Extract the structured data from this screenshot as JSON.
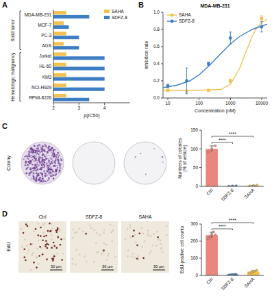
{
  "chart_data": [
    {
      "panel": "A",
      "type": "bar",
      "orientation": "horizontal",
      "categories": [
        "MDA-MB-231",
        "MCF-7",
        "PC-3",
        "AGS",
        "Jurkat",
        "HL-60",
        "KM3",
        "NCI-H929",
        "RPMI-8226"
      ],
      "series": [
        {
          "name": "SAHA",
          "color": "#f2c14e",
          "values": [
            2.5,
            2.4,
            2.5,
            2.4,
            2.5,
            2.5,
            2.5,
            2.5,
            2.5
          ]
        },
        {
          "name": "SDFZ-8",
          "color": "#3c7dc4",
          "values": [
            3.4,
            2.6,
            3.0,
            3.0,
            4.0,
            4.0,
            4.0,
            4.0,
            3.4
          ]
        }
      ],
      "groups": [
        {
          "label": "Solid tumor",
          "count": 4
        },
        {
          "label": "Hematologic malignancy",
          "count": 5
        }
      ],
      "x_label": "p(IC50)",
      "xlim": [
        2,
        5
      ],
      "xticks": [
        2,
        3,
        4
      ],
      "legend": "upper right"
    },
    {
      "panel": "B",
      "type": "line",
      "title": "MDA-MB-231",
      "log": "x",
      "x_label": "Concentration (nM)",
      "y_label": "Inhibition rate",
      "xlim": [
        7,
        15000
      ],
      "xticks": [
        10,
        100,
        1000,
        10000
      ],
      "ylim": [
        0,
        1
      ],
      "yticks": [
        {
          "value": 0,
          "label": "0.0"
        },
        {
          "value": 0.2,
          "label": "0.2"
        },
        {
          "value": 0.4,
          "label": "0.4"
        },
        {
          "value": 0.6,
          "label": "0.6"
        },
        {
          "value": 0.8,
          "label": "0.8"
        },
        {
          "value": 1,
          "label": "1.0"
        }
      ],
      "legend": "upper left",
      "series": [
        {
          "name": "SAHA",
          "color": "#f2c14e",
          "marker": "square",
          "x": [
            10,
            40,
            200,
            1000,
            10000
          ],
          "values": [
            0.09,
            0.08,
            0.09,
            0.2,
            0.93
          ],
          "errors": [
            0.01,
            0.01,
            0.01,
            0.02,
            0.03
          ],
          "fit": {
            "x": [
              7,
              10,
              100,
              500,
              1000,
              2000,
              3000,
              5000,
              7000,
              10000,
              15000
            ],
            "values": [
              0.09,
              0.09,
              0.09,
              0.1,
              0.16,
              0.35,
              0.52,
              0.72,
              0.82,
              0.88,
              0.92
            ]
          }
        },
        {
          "name": "SDFZ-8",
          "color": "#3c7dc4",
          "marker": "circle",
          "x": [
            10,
            40,
            200,
            1000,
            10000
          ],
          "values": [
            0.14,
            0.2,
            0.4,
            0.7,
            0.83
          ],
          "errors": [
            0.02,
            0.15,
            0.02,
            0.07,
            0.06
          ],
          "fit": {
            "x": [
              7,
              10,
              20,
              50,
              100,
              200,
              500,
              1000,
              2000,
              5000,
              10000,
              15000
            ],
            "values": [
              0.12,
              0.13,
              0.15,
              0.2,
              0.27,
              0.37,
              0.52,
              0.63,
              0.72,
              0.8,
              0.84,
              0.86
            ]
          }
        }
      ]
    },
    {
      "panel": "C",
      "type": "bar",
      "image_row_label": "Colony",
      "categories": [
        "Ctrl",
        "SDFZ-8",
        "SAHA"
      ],
      "values": [
        100,
        1,
        2
      ],
      "errors": [
        8,
        0.5,
        1
      ],
      "points": [
        [
          92,
          100,
          108
        ],
        [
          0.5,
          1,
          1.5
        ],
        [
          1,
          2,
          3
        ]
      ],
      "colors": [
        "#e9877c",
        "#4a80c6",
        "#f2c14e"
      ],
      "y_label": "Numbers of colonies (% of vehicle)",
      "ylim": [
        0,
        150
      ],
      "yticks": [
        0,
        50,
        100,
        150
      ],
      "annotations": [
        "****",
        "****"
      ]
    },
    {
      "panel": "D",
      "type": "bar",
      "image_row_label": "EdU",
      "image_labels": [
        "Ctrl",
        "SDFZ-8",
        "SAHA"
      ],
      "scale_bar": "50 μm",
      "categories": [
        "Ctrl",
        "SDFZ-8",
        "SAHA"
      ],
      "values": [
        235,
        5,
        22
      ],
      "errors": [
        17,
        2,
        6
      ],
      "points": [
        [
          215,
          228,
          240,
          255,
          237
        ],
        [
          3,
          4,
          5,
          6,
          7
        ],
        [
          15,
          18,
          22,
          26,
          29
        ]
      ],
      "colors": [
        "#e9877c",
        "#4a80c6",
        "#f2c14e"
      ],
      "y_label": "EdU-positive cell counts",
      "ylim": [
        0,
        300
      ],
      "yticks": [
        0,
        100,
        200,
        300
      ],
      "annotations": [
        "****",
        "****"
      ]
    }
  ]
}
